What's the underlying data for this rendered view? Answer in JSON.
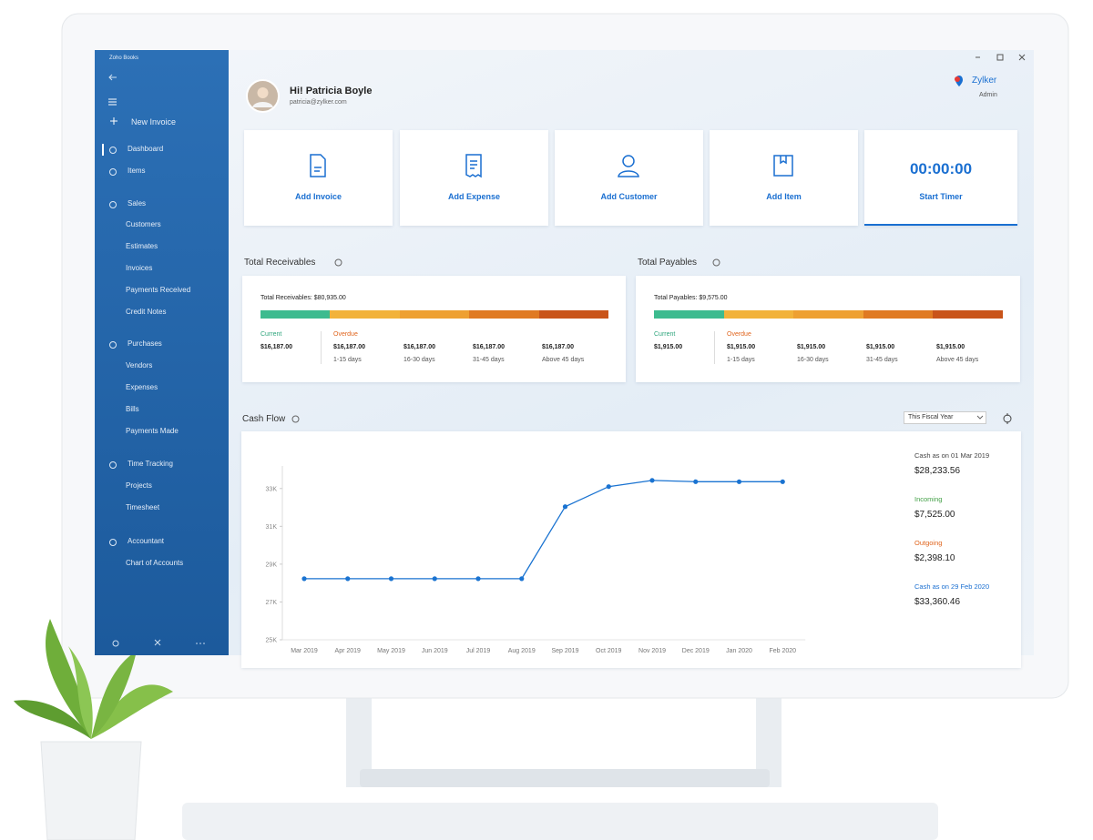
{
  "sidebar": {
    "app_name": "Zoho Books",
    "new_invoice": "New Invoice",
    "nav": [
      "Dashboard",
      "Items",
      "Sales",
      "Customers",
      "Estimates",
      "Invoices",
      "Payments Received",
      "Credit Notes",
      "Purchases",
      "Vendors",
      "Expenses",
      "Bills",
      "Payments Made",
      "Time Tracking",
      "Projects",
      "Timesheet",
      "Accountant",
      "Chart of Accounts"
    ]
  },
  "header": {
    "greeting": "Hi! Patricia Boyle",
    "email": "patricia@zylker.com",
    "organization": "Zylker",
    "role": "Admin"
  },
  "quick_actions": [
    "Add Invoice",
    "Add Expense",
    "Add Customer",
    "Add Item"
  ],
  "timer": {
    "time": "00:00:00",
    "label": "Start Timer"
  },
  "receivables": {
    "title": "Total Receivables",
    "total": "Total Receivables: $80,935.00",
    "current_label": "Current",
    "current_amount": "$16,187.00",
    "overdue_label": "Overdue",
    "overdue": [
      {
        "amount": "$16,187.00",
        "period": "1-15 days"
      },
      {
        "amount": "$16,187.00",
        "period": "16-30 days"
      },
      {
        "amount": "$16,187.00",
        "period": "31-45 days"
      },
      {
        "amount": "$16,187.00",
        "period": "Above 45 days"
      }
    ]
  },
  "payables": {
    "title": "Total Payables",
    "total": "Total Payables: $9,575.00",
    "current_label": "Current",
    "current_amount": "$1,915.00",
    "overdue_label": "Overdue",
    "overdue": [
      {
        "amount": "$1,915.00",
        "period": "1-15 days"
      },
      {
        "amount": "$1,915.00",
        "period": "16-30 days"
      },
      {
        "amount": "$1,915.00",
        "period": "31-45 days"
      },
      {
        "amount": "$1,915.00",
        "period": "Above 45 days"
      }
    ]
  },
  "chart_data": {
    "type": "line",
    "title": "Cash Flow",
    "range_selector": "This Fiscal Year",
    "categories": [
      "Mar 2019",
      "Apr 2019",
      "May 2019",
      "Jun 2019",
      "Jul 2019",
      "Aug 2019",
      "Sep 2019",
      "Oct 2019",
      "Nov 2019",
      "Dec 2019",
      "Jan 2020",
      "Feb 2020"
    ],
    "values": [
      28230,
      28230,
      28230,
      28230,
      28230,
      28230,
      32040,
      33100,
      33430,
      33360,
      33360,
      33360
    ],
    "color": "#1a73d1",
    "ylim": [
      25000,
      34000
    ],
    "yticks": [
      {
        "value": 25000,
        "label": "25K"
      },
      {
        "value": 27000,
        "label": "27K"
      },
      {
        "value": 29000,
        "label": "29K"
      },
      {
        "value": 31000,
        "label": "31K"
      },
      {
        "value": 33000,
        "label": "33K"
      }
    ]
  },
  "cash_summary": [
    {
      "label": "Cash as on 01 Mar 2019",
      "amount": "$28,233.56"
    },
    {
      "label": "Incoming",
      "amount": "$7,525.00"
    },
    {
      "label": "Outgoing",
      "amount": "$2,398.10"
    },
    {
      "label": "Cash as on 29 Feb 2020",
      "amount": "$33,360.46"
    }
  ]
}
